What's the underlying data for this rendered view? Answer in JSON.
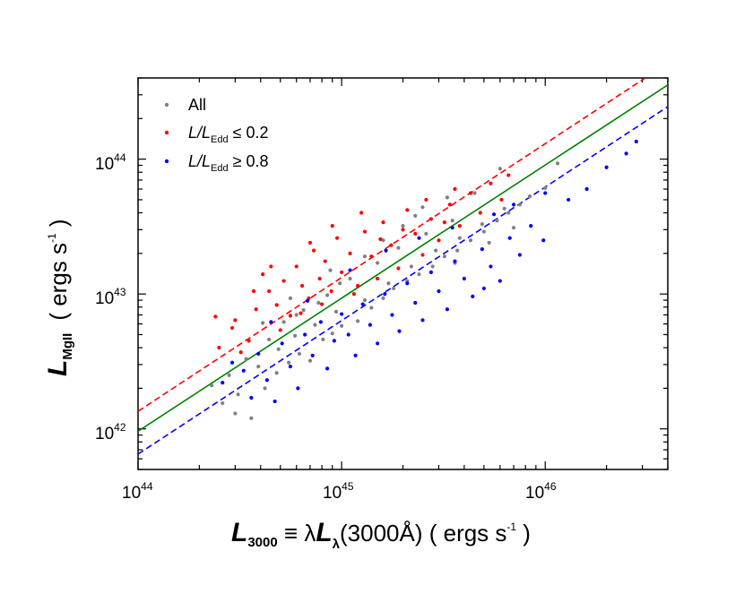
{
  "chart_data": {
    "type": "scatter",
    "title": "",
    "xscale": "log",
    "yscale": "log",
    "xlim": [
      1e+44,
      4e+46
    ],
    "ylim": [
      5e+41,
      4e+44
    ],
    "xlabel": {
      "main": "L",
      "sub": "3000",
      "rest": " ≡ λ",
      "main2": "L",
      "sub2": "λ",
      "rest2": "(3000Å)   ( ergs s",
      "exp": "-1",
      "close": " )"
    },
    "ylabel": {
      "main": "L",
      "sub": "MgII",
      "rest": "( ergs s",
      "exp": "-1",
      "close": " )"
    },
    "x_ticks": [
      {
        "base": "10",
        "exp": "44",
        "value": 1e+44
      },
      {
        "base": "10",
        "exp": "45",
        "value": 1e+45
      },
      {
        "base": "10",
        "exp": "46",
        "value": 1e+46
      }
    ],
    "y_ticks": [
      {
        "base": "10",
        "exp": "42",
        "value": 1e+42
      },
      {
        "base": "10",
        "exp": "43",
        "value": 1e+43
      },
      {
        "base": "10",
        "exp": "44",
        "value": 1e+44
      }
    ],
    "legend": {
      "placement": "top-left",
      "entries": [
        {
          "label": "All",
          "color": "#808080"
        },
        {
          "label_main": "L/L",
          "label_sub": "Edd",
          "label_rest": " ≤ 0.2",
          "color": "#ff0000"
        },
        {
          "label_main": "L/L",
          "label_sub": "Edd",
          "label_rest": " ≥ 0.8",
          "color": "#0000ff"
        }
      ]
    },
    "fit_lines": [
      {
        "name": "all-fit",
        "style": "solid",
        "color": "#008000",
        "points": [
          [
            1e+44,
            9.6e+41
          ],
          [
            4e+46,
            3.55e+44
          ]
        ]
      },
      {
        "name": "low-edd-fit",
        "style": "dashed",
        "color": "#ff0000",
        "points": [
          [
            1e+44,
            1.35e+42
          ],
          [
            3.1e+46,
            4e+44
          ]
        ]
      },
      {
        "name": "high-edd-fit",
        "style": "dashed",
        "color": "#0000ff",
        "points": [
          [
            1e+44,
            6.5e+41
          ],
          [
            4e+46,
            2.45e+44
          ]
        ]
      }
    ],
    "series": [
      {
        "name": "All",
        "color": "#808080",
        "points": [
          [
            3e+44,
            1.3e+42
          ],
          [
            3.6e+44,
            1.2e+42
          ],
          [
            4.2e+44,
            2e+42
          ],
          [
            4.8e+44,
            2.6e+42
          ],
          [
            5.5e+44,
            3.1e+42
          ],
          [
            6.2e+44,
            3.6e+42
          ],
          [
            7e+44,
            3.2e+42
          ],
          [
            8.1e+44,
            4.6e+42
          ],
          [
            9e+44,
            5.1e+42
          ],
          [
            1e+45,
            5.8e+42
          ],
          [
            1.2e+45,
            6.3e+42
          ],
          [
            1.4e+45,
            7.9e+42
          ],
          [
            1.6e+45,
            9.3e+42
          ],
          [
            1.8e+45,
            1.1e+43
          ],
          [
            2.1e+45,
            1.25e+43
          ],
          [
            2.4e+45,
            1.4e+43
          ],
          [
            2.8e+45,
            1.6e+43
          ],
          [
            3.2e+45,
            1.9e+43
          ],
          [
            3.7e+45,
            2.1e+43
          ],
          [
            4.3e+45,
            2.5e+43
          ],
          [
            5e+45,
            2.9e+43
          ],
          [
            5.8e+45,
            3.5e+43
          ],
          [
            6.6e+45,
            4e+43
          ],
          [
            7.5e+45,
            4.6e+43
          ],
          [
            8.4e+45,
            5.3e+43
          ],
          [
            1e+46,
            6.1e+43
          ],
          [
            6e+45,
            8.5e+43
          ],
          [
            4.5e+45,
            5.6e+43
          ],
          [
            3.5e+45,
            3.5e+43
          ],
          [
            2.6e+45,
            2.8e+43
          ],
          [
            1.9e+45,
            2.2e+43
          ],
          [
            1.5e+45,
            1.7e+43
          ],
          [
            1.1e+45,
            1.3e+43
          ],
          [
            8.5e+44,
            9.8e+42
          ],
          [
            6.5e+44,
            7.6e+42
          ],
          [
            5.2e+44,
            6.2e+42
          ],
          [
            4.4e+44,
            4.6e+42
          ],
          [
            3.4e+44,
            3.3e+42
          ],
          [
            2.8e+44,
            2.5e+42
          ],
          [
            2.3e+44,
            2.1e+42
          ],
          [
            3.9e+44,
            2.9e+42
          ],
          [
            4.9e+44,
            3.9e+42
          ],
          [
            5.9e+44,
            4.9e+42
          ],
          [
            7.4e+44,
            5.9e+42
          ],
          [
            9.4e+44,
            7.4e+42
          ],
          [
            1.3e+45,
            9e+42
          ],
          [
            1.7e+45,
            1.2e+43
          ],
          [
            2.2e+45,
            1.6e+43
          ],
          [
            2.9e+45,
            2.1e+43
          ],
          [
            3.8e+45,
            2.6e+43
          ],
          [
            4.9e+45,
            3.3e+43
          ],
          [
            6.3e+45,
            4.3e+43
          ],
          [
            2e+45,
            3.2e+43
          ],
          [
            2.3e+45,
            3.8e+43
          ],
          [
            1.3e+45,
            1.9e+43
          ],
          [
            9.8e+44,
            1.2e+43
          ],
          [
            7.7e+44,
            8.6e+42
          ],
          [
            6e+44,
            7e+42
          ],
          [
            3.1e+44,
            1.8e+42
          ],
          [
            2.6e+44,
            1.55e+42
          ],
          [
            4.1e+44,
            6.1e+42
          ],
          [
            5.6e+44,
            9.3e+42
          ],
          [
            8.8e+44,
            1.5e+43
          ],
          [
            1.6e+45,
            2.5e+43
          ],
          [
            2.5e+45,
            4.4e+43
          ],
          [
            3.6e+45,
            1.7e+43
          ],
          [
            5.3e+45,
            2.4e+43
          ],
          [
            7e+45,
            3.1e+43
          ],
          [
            1.15e+46,
            9.3e+43
          ],
          [
            3.3e+45,
            5.2e+43
          ]
        ]
      },
      {
        "name": "L/L_Edd ≤ 0.2",
        "color": "#ff0000",
        "points": [
          [
            2.4e+44,
            6.8e+42
          ],
          [
            2.5e+44,
            4e+42
          ],
          [
            2.9e+44,
            5.6e+42
          ],
          [
            3.2e+44,
            3.7e+42
          ],
          [
            3.5e+44,
            4.5e+42
          ],
          [
            3.8e+44,
            7.7e+42
          ],
          [
            4.1e+44,
            1.4e+43
          ],
          [
            4.4e+44,
            1.05e+43
          ],
          [
            4.8e+44,
            8.3e+42
          ],
          [
            5.2e+44,
            1.25e+43
          ],
          [
            5.6e+44,
            6.9e+42
          ],
          [
            6e+44,
            1.6e+43
          ],
          [
            6.4e+44,
            1.15e+43
          ],
          [
            6.9e+44,
            9.3e+42
          ],
          [
            7.3e+44,
            2.1e+43
          ],
          [
            7.8e+44,
            1.3e+43
          ],
          [
            8.3e+44,
            1.75e+43
          ],
          [
            8.9e+44,
            1.05e+43
          ],
          [
            9.5e+44,
            2.6e+43
          ],
          [
            1e+45,
            1.45e+43
          ],
          [
            1.1e+45,
            2e+43
          ],
          [
            1.2e+45,
            1.15e+43
          ],
          [
            1.3e+45,
            2.9e+43
          ],
          [
            1.4e+45,
            1.9e+43
          ],
          [
            1.5e+45,
            1.3e+43
          ],
          [
            1.6e+45,
            3.4e+43
          ],
          [
            1.75e+45,
            2.3e+43
          ],
          [
            1.9e+45,
            1.55e+43
          ],
          [
            2.1e+45,
            4.2e+43
          ],
          [
            2.3e+45,
            2.8e+43
          ],
          [
            2.5e+45,
            1.95e+43
          ],
          [
            2.75e+45,
            3.6e+43
          ],
          [
            3e+45,
            2.5e+43
          ],
          [
            3.4e+45,
            4.6e+43
          ],
          [
            3.8e+45,
            3.2e+43
          ],
          [
            4.3e+45,
            5.6e+43
          ],
          [
            4.8e+45,
            4e+43
          ],
          [
            5.4e+45,
            6.6e+43
          ],
          [
            6.1e+45,
            5e+43
          ],
          [
            6.6e+45,
            7.6e+43
          ],
          [
            5e+44,
            5.4e+42
          ],
          [
            6.3e+44,
            7.2e+42
          ],
          [
            8e+44,
            8.4e+42
          ],
          [
            1.15e+45,
            1e+43
          ],
          [
            1.55e+45,
            2.55e+43
          ],
          [
            2e+45,
            3e+43
          ],
          [
            2.6e+45,
            5e+43
          ],
          [
            3.2e+45,
            3.4e+43
          ],
          [
            3.6e+45,
            6e+43
          ],
          [
            9e+44,
            3.2e+43
          ],
          [
            1.25e+45,
            4e+43
          ],
          [
            7e+44,
            2.4e+43
          ],
          [
            4.5e+44,
            1.6e+43
          ],
          [
            3.7e+44,
            1.05e+43
          ],
          [
            3e+44,
            6.4e+42
          ]
        ]
      },
      {
        "name": "L/L_Edd ≥ 0.8",
        "color": "#0000ff",
        "points": [
          [
            3.3e+44,
            2.7e+42
          ],
          [
            3.6e+44,
            1.7e+42
          ],
          [
            3.9e+44,
            3.6e+42
          ],
          [
            4.3e+44,
            2.3e+42
          ],
          [
            4.7e+44,
            1.6e+42
          ],
          [
            5.1e+44,
            4.3e+42
          ],
          [
            5.6e+44,
            2.9e+42
          ],
          [
            6.1e+44,
            2e+42
          ],
          [
            6.6e+44,
            5e+42
          ],
          [
            7.2e+44,
            3.5e+42
          ],
          [
            7.9e+44,
            6.2e+42
          ],
          [
            8.5e+44,
            2.8e+42
          ],
          [
            9.2e+44,
            4.5e+42
          ],
          [
            1e+45,
            7.1e+42
          ],
          [
            1.08e+45,
            5e+42
          ],
          [
            1.17e+45,
            3.5e+42
          ],
          [
            1.27e+45,
            8.4e+42
          ],
          [
            1.38e+45,
            5.9e+42
          ],
          [
            1.5e+45,
            4.3e+42
          ],
          [
            1.63e+45,
            1e+43
          ],
          [
            1.77e+45,
            7e+42
          ],
          [
            1.92e+45,
            5.3e+42
          ],
          [
            2.1e+45,
            1.2e+43
          ],
          [
            2.3e+45,
            8.6e+42
          ],
          [
            2.5e+45,
            6.4e+42
          ],
          [
            2.75e+45,
            1.45e+43
          ],
          [
            3e+45,
            1.05e+43
          ],
          [
            3.3e+45,
            7.7e+42
          ],
          [
            3.6e+45,
            1.75e+43
          ],
          [
            4e+45,
            1.3e+43
          ],
          [
            4.4e+45,
            9.6e+42
          ],
          [
            4.9e+45,
            2.15e+43
          ],
          [
            5.4e+45,
            1.6e+43
          ],
          [
            6e+45,
            1.25e+43
          ],
          [
            6.7e+45,
            2.6e+43
          ],
          [
            7.5e+45,
            1.95e+43
          ],
          [
            8.5e+45,
            3.2e+43
          ],
          [
            9.8e+45,
            2.5e+43
          ],
          [
            1.3e+46,
            5e+43
          ],
          [
            1.6e+46,
            6e+43
          ],
          [
            2e+46,
            8.7e+43
          ],
          [
            2.5e+46,
            1.1e+44
          ],
          [
            2.8e+46,
            1.35e+44
          ],
          [
            5e+45,
            1.1e+43
          ],
          [
            2.6e+44,
            2.2e+42
          ],
          [
            2.9e+44,
            3.1e+42
          ],
          [
            4.5e+44,
            6.2e+42
          ],
          [
            6.8e+44,
            8.9e+42
          ],
          [
            1.1e+45,
            1.5e+43
          ],
          [
            1.65e+45,
            2.1e+43
          ],
          [
            2.4e+45,
            2.6e+43
          ],
          [
            3.5e+45,
            3.1e+43
          ],
          [
            5.6e+45,
            3.9e+43
          ],
          [
            7e+45,
            4.6e+43
          ],
          [
            1e+46,
            5.6e+43
          ]
        ]
      }
    ]
  }
}
